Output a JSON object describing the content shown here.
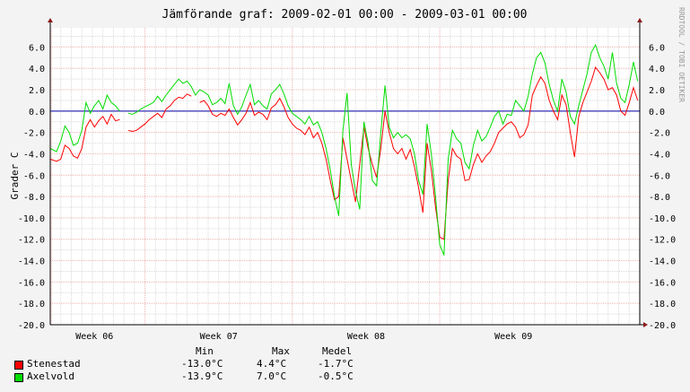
{
  "chart_data": {
    "type": "line",
    "title": "Jämförande graf: 2009-02-01 00:00 - 2009-03-01 00:00",
    "ylabel": "Grader C",
    "watermark": "RRDTOOL / TOBI OETIKER",
    "ylim": [
      -20,
      7.8
    ],
    "yticks": [
      6,
      4,
      2,
      0,
      -2,
      -4,
      -6,
      -8,
      -10,
      -12,
      -14,
      -16,
      -18,
      -20
    ],
    "ytick_labels": [
      "6.0",
      "4.0",
      "2.0",
      "0.0",
      "-2.0",
      "-4.0",
      "-6.0",
      "-8.0",
      "-10.0",
      "-12.0",
      "-14.0",
      "-16.0",
      "-18.0",
      "-20.0"
    ],
    "xlim": [
      0,
      28
    ],
    "week_lines": [
      0.05,
      4.5,
      11.5,
      18.5
    ],
    "xtick_labels": [
      {
        "x": 2.1,
        "label": "Week 06"
      },
      {
        "x": 8.0,
        "label": "Week 07"
      },
      {
        "x": 15.0,
        "label": "Week 08"
      },
      {
        "x": 22.0,
        "label": "Week 09"
      }
    ],
    "grid": true,
    "colors": {
      "background": "#ffffff",
      "grid_minor": "#d9d9d9",
      "grid_major": "#f2b4b4",
      "zero_line": "#0000aa",
      "axis": "#000000",
      "frame": "#ffffff"
    },
    "series": [
      {
        "name": "Stenestad",
        "color": "#ff0000",
        "points": [
          [
            0,
            -4.5
          ],
          [
            0.3,
            -4.7
          ],
          [
            0.5,
            -4.5
          ],
          [
            0.7,
            -3.2
          ],
          [
            0.9,
            -3.5
          ],
          [
            1.1,
            -4.2
          ],
          [
            1.3,
            -4.4
          ],
          [
            1.5,
            -3.5
          ],
          [
            1.7,
            -1.5
          ],
          [
            1.9,
            -0.8
          ],
          [
            2.1,
            -1.5
          ],
          [
            2.3,
            -0.9
          ],
          [
            2.5,
            -0.5
          ],
          [
            2.7,
            -1.2
          ],
          [
            2.9,
            -0.3
          ],
          [
            3.1,
            -0.9
          ],
          [
            3.3,
            -0.8
          ],
          [
            3.5,
            null
          ],
          [
            3.7,
            -1.8
          ],
          [
            3.9,
            -1.9
          ],
          [
            4.1,
            -1.8
          ],
          [
            4.3,
            -1.5
          ],
          [
            4.5,
            -1.2
          ],
          [
            4.7,
            -0.8
          ],
          [
            4.9,
            -0.5
          ],
          [
            5.1,
            -0.2
          ],
          [
            5.3,
            -0.6
          ],
          [
            5.5,
            0.2
          ],
          [
            5.7,
            0.5
          ],
          [
            5.9,
            1.0
          ],
          [
            6.1,
            1.3
          ],
          [
            6.3,
            1.2
          ],
          [
            6.5,
            1.6
          ],
          [
            6.7,
            1.4
          ],
          [
            6.9,
            null
          ],
          [
            7.1,
            0.8
          ],
          [
            7.3,
            1.0
          ],
          [
            7.5,
            0.5
          ],
          [
            7.7,
            -0.3
          ],
          [
            7.9,
            -0.5
          ],
          [
            8.1,
            -0.2
          ],
          [
            8.3,
            -0.4
          ],
          [
            8.5,
            0.2
          ],
          [
            8.7,
            -0.6
          ],
          [
            8.9,
            -1.3
          ],
          [
            9.1,
            -0.8
          ],
          [
            9.3,
            -0.2
          ],
          [
            9.5,
            0.8
          ],
          [
            9.7,
            -0.4
          ],
          [
            9.9,
            -0.1
          ],
          [
            10.1,
            -0.3
          ],
          [
            10.3,
            -0.8
          ],
          [
            10.5,
            0.3
          ],
          [
            10.7,
            0.6
          ],
          [
            10.9,
            1.2
          ],
          [
            11.1,
            0.4
          ],
          [
            11.3,
            -0.6
          ],
          [
            11.5,
            -1.2
          ],
          [
            11.7,
            -1.6
          ],
          [
            11.9,
            -1.8
          ],
          [
            12.1,
            -2.2
          ],
          [
            12.3,
            -1.5
          ],
          [
            12.5,
            -2.5
          ],
          [
            12.7,
            -2.0
          ],
          [
            12.9,
            -3.0
          ],
          [
            13.1,
            -4.5
          ],
          [
            13.3,
            -6.5
          ],
          [
            13.5,
            -8.3
          ],
          [
            13.7,
            -8.0
          ],
          [
            13.9,
            -2.5
          ],
          [
            14.1,
            -4.5
          ],
          [
            14.3,
            -6.5
          ],
          [
            14.5,
            -8.5
          ],
          [
            14.7,
            -5.0
          ],
          [
            14.9,
            -1.5
          ],
          [
            15.1,
            -3.5
          ],
          [
            15.3,
            -5.0
          ],
          [
            15.5,
            -6.2
          ],
          [
            15.7,
            -3.5
          ],
          [
            15.9,
            0.0
          ],
          [
            16.1,
            -2.0
          ],
          [
            16.3,
            -3.5
          ],
          [
            16.5,
            -4.0
          ],
          [
            16.7,
            -3.5
          ],
          [
            16.9,
            -4.5
          ],
          [
            17.1,
            -3.6
          ],
          [
            17.3,
            -5.2
          ],
          [
            17.5,
            -7.2
          ],
          [
            17.7,
            -9.5
          ],
          [
            17.9,
            -3.0
          ],
          [
            18.1,
            -5.5
          ],
          [
            18.3,
            -9.0
          ],
          [
            18.5,
            -11.8
          ],
          [
            18.7,
            -12.0
          ],
          [
            18.9,
            -6.5
          ],
          [
            19.1,
            -3.5
          ],
          [
            19.3,
            -4.2
          ],
          [
            19.5,
            -4.5
          ],
          [
            19.7,
            -6.5
          ],
          [
            19.9,
            -6.4
          ],
          [
            20.1,
            -5.0
          ],
          [
            20.3,
            -4.0
          ],
          [
            20.5,
            -4.8
          ],
          [
            20.7,
            -4.2
          ],
          [
            20.9,
            -3.8
          ],
          [
            21.1,
            -3.0
          ],
          [
            21.3,
            -2.0
          ],
          [
            21.5,
            -1.6
          ],
          [
            21.7,
            -1.2
          ],
          [
            21.9,
            -1.0
          ],
          [
            22.1,
            -1.5
          ],
          [
            22.3,
            -2.5
          ],
          [
            22.5,
            -2.2
          ],
          [
            22.7,
            -1.3
          ],
          [
            22.9,
            1.5
          ],
          [
            23.1,
            2.4
          ],
          [
            23.3,
            3.2
          ],
          [
            23.5,
            2.6
          ],
          [
            23.7,
            1.0
          ],
          [
            23.9,
            0.0
          ],
          [
            24.1,
            -0.8
          ],
          [
            24.3,
            1.5
          ],
          [
            24.5,
            0.6
          ],
          [
            24.7,
            -2.0
          ],
          [
            24.9,
            -4.3
          ],
          [
            25.1,
            -0.5
          ],
          [
            25.3,
            0.8
          ],
          [
            25.5,
            1.8
          ],
          [
            25.7,
            2.8
          ],
          [
            25.9,
            4.1
          ],
          [
            26.1,
            3.6
          ],
          [
            26.3,
            3.0
          ],
          [
            26.5,
            2.0
          ],
          [
            26.7,
            2.2
          ],
          [
            26.9,
            1.5
          ],
          [
            27.1,
            0.0
          ],
          [
            27.3,
            -0.4
          ],
          [
            27.5,
            0.8
          ],
          [
            27.7,
            2.2
          ],
          [
            27.9,
            1.0
          ],
          [
            28.1,
            -1.5
          ],
          [
            28.3,
            -3.0
          ],
          [
            28.5,
            -3.8
          ],
          [
            28.7,
            -3.7
          ],
          [
            28.9,
            1.8
          ],
          [
            29.1,
            0.2
          ],
          [
            29.3,
            -0.3
          ]
        ]
      },
      {
        "name": "Axelvold",
        "color": "#00dd00",
        "points": [
          [
            0,
            -3.5
          ],
          [
            0.3,
            -3.8
          ],
          [
            0.5,
            -2.8
          ],
          [
            0.7,
            -1.4
          ],
          [
            0.9,
            -2.0
          ],
          [
            1.1,
            -3.2
          ],
          [
            1.3,
            -3.0
          ],
          [
            1.5,
            -1.8
          ],
          [
            1.7,
            0.8
          ],
          [
            1.9,
            -0.2
          ],
          [
            2.1,
            0.5
          ],
          [
            2.3,
            1.0
          ],
          [
            2.5,
            0.2
          ],
          [
            2.7,
            1.5
          ],
          [
            2.9,
            0.8
          ],
          [
            3.1,
            0.5
          ],
          [
            3.3,
            0.0
          ],
          [
            3.5,
            null
          ],
          [
            3.7,
            -0.2
          ],
          [
            3.9,
            -0.3
          ],
          [
            4.1,
            -0.1
          ],
          [
            4.3,
            0.2
          ],
          [
            4.5,
            0.4
          ],
          [
            4.7,
            0.6
          ],
          [
            4.9,
            0.8
          ],
          [
            5.1,
            1.4
          ],
          [
            5.3,
            0.9
          ],
          [
            5.5,
            1.5
          ],
          [
            5.7,
            2.0
          ],
          [
            5.9,
            2.5
          ],
          [
            6.1,
            3.0
          ],
          [
            6.3,
            2.6
          ],
          [
            6.5,
            2.8
          ],
          [
            6.7,
            2.3
          ],
          [
            6.9,
            1.5
          ],
          [
            7.1,
            2.0
          ],
          [
            7.3,
            1.8
          ],
          [
            7.5,
            1.5
          ],
          [
            7.7,
            0.6
          ],
          [
            7.9,
            0.8
          ],
          [
            8.1,
            1.2
          ],
          [
            8.3,
            0.7
          ],
          [
            8.5,
            2.6
          ],
          [
            8.7,
            0.5
          ],
          [
            8.9,
            -0.3
          ],
          [
            9.1,
            0.4
          ],
          [
            9.3,
            1.5
          ],
          [
            9.5,
            2.5
          ],
          [
            9.7,
            0.6
          ],
          [
            9.9,
            1.0
          ],
          [
            10.1,
            0.5
          ],
          [
            10.3,
            0.2
          ],
          [
            10.5,
            1.6
          ],
          [
            10.7,
            2.0
          ],
          [
            10.9,
            2.5
          ],
          [
            11.1,
            1.6
          ],
          [
            11.3,
            0.5
          ],
          [
            11.5,
            -0.2
          ],
          [
            11.7,
            -0.5
          ],
          [
            11.9,
            -0.8
          ],
          [
            12.1,
            -1.2
          ],
          [
            12.3,
            -0.5
          ],
          [
            12.5,
            -1.3
          ],
          [
            12.7,
            -1.0
          ],
          [
            12.9,
            -2.0
          ],
          [
            13.1,
            -3.5
          ],
          [
            13.3,
            -5.5
          ],
          [
            13.5,
            -8.0
          ],
          [
            13.7,
            -9.8
          ],
          [
            13.9,
            -1.8
          ],
          [
            14.1,
            1.7
          ],
          [
            14.3,
            -5.0
          ],
          [
            14.5,
            -7.5
          ],
          [
            14.7,
            -9.2
          ],
          [
            14.9,
            -1.0
          ],
          [
            15.1,
            -3.0
          ],
          [
            15.3,
            -6.5
          ],
          [
            15.5,
            -7.0
          ],
          [
            15.7,
            -2.0
          ],
          [
            15.9,
            2.4
          ],
          [
            16.1,
            -1.5
          ],
          [
            16.3,
            -2.5
          ],
          [
            16.5,
            -2.0
          ],
          [
            16.7,
            -2.5
          ],
          [
            16.9,
            -2.2
          ],
          [
            17.1,
            -2.6
          ],
          [
            17.3,
            -4.0
          ],
          [
            17.5,
            -6.5
          ],
          [
            17.7,
            -7.8
          ],
          [
            17.9,
            -1.2
          ],
          [
            18.1,
            -4.0
          ],
          [
            18.3,
            -8.0
          ],
          [
            18.5,
            -12.5
          ],
          [
            18.7,
            -13.5
          ],
          [
            18.9,
            -4.5
          ],
          [
            19.1,
            -1.8
          ],
          [
            19.3,
            -2.6
          ],
          [
            19.5,
            -3.0
          ],
          [
            19.7,
            -4.8
          ],
          [
            19.9,
            -5.4
          ],
          [
            20.1,
            -3.2
          ],
          [
            20.3,
            -1.8
          ],
          [
            20.5,
            -2.8
          ],
          [
            20.7,
            -2.4
          ],
          [
            20.9,
            -1.5
          ],
          [
            21.1,
            -0.5
          ],
          [
            21.3,
            0.0
          ],
          [
            21.5,
            -1.2
          ],
          [
            21.7,
            -0.3
          ],
          [
            21.9,
            -0.4
          ],
          [
            22.1,
            1.0
          ],
          [
            22.3,
            0.5
          ],
          [
            22.5,
            0.0
          ],
          [
            22.7,
            1.4
          ],
          [
            22.9,
            3.5
          ],
          [
            23.1,
            5.0
          ],
          [
            23.3,
            5.5
          ],
          [
            23.5,
            4.5
          ],
          [
            23.7,
            2.5
          ],
          [
            23.9,
            1.0
          ],
          [
            24.1,
            0.0
          ],
          [
            24.3,
            3.0
          ],
          [
            24.5,
            1.8
          ],
          [
            24.7,
            -0.5
          ],
          [
            24.9,
            -1.2
          ],
          [
            25.1,
            0.5
          ],
          [
            25.3,
            2.0
          ],
          [
            25.5,
            3.5
          ],
          [
            25.7,
            5.5
          ],
          [
            25.9,
            6.2
          ],
          [
            26.1,
            5.0
          ],
          [
            26.3,
            4.2
          ],
          [
            26.5,
            3.0
          ],
          [
            26.7,
            5.5
          ],
          [
            26.9,
            2.6
          ],
          [
            27.1,
            1.2
          ],
          [
            27.3,
            0.8
          ],
          [
            27.5,
            2.5
          ],
          [
            27.7,
            4.6
          ],
          [
            27.9,
            2.8
          ],
          [
            28.1,
            -0.6
          ],
          [
            28.3,
            -2.0
          ],
          [
            28.5,
            -4.2
          ],
          [
            28.7,
            -3.0
          ],
          [
            28.9,
            4.2
          ],
          [
            29.1,
            2.0
          ],
          [
            29.3,
            0.5
          ]
        ]
      }
    ]
  },
  "legend": {
    "headers": {
      "min": "Min",
      "max": "Max",
      "mean": "Medel"
    },
    "rows": [
      {
        "name": "Stenestad",
        "color": "#ff0000",
        "min": "-13.0°C",
        "max": "4.4°C",
        "mean": "-1.7°C"
      },
      {
        "name": "Axelvold",
        "color": "#00dd00",
        "min": "-13.9°C",
        "max": "7.0°C",
        "mean": "-0.5°C"
      }
    ]
  }
}
